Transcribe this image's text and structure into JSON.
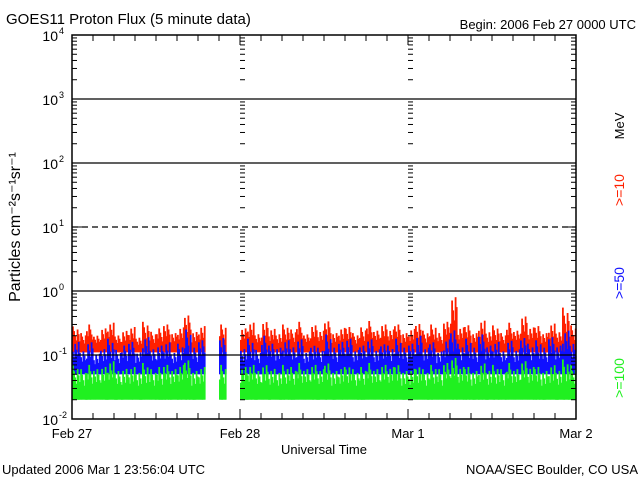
{
  "chart_data": {
    "type": "line",
    "title": "GOES11 Proton Flux (5 minute data)",
    "begin_label": "Begin: 2006 Feb 27 0000 UTC",
    "xlabel": "Universal Time",
    "ylabel": "Particles cm⁻²s⁻¹sr⁻¹",
    "y_scale": "log",
    "ylim": [
      0.01,
      10000
    ],
    "y_ticks": [
      {
        "base": "10",
        "exp": "-2"
      },
      {
        "base": "10",
        "exp": "-1"
      },
      {
        "base": "10",
        "exp": "0"
      },
      {
        "base": "10",
        "exp": "1"
      },
      {
        "base": "10",
        "exp": "2"
      },
      {
        "base": "10",
        "exp": "3"
      },
      {
        "base": "10",
        "exp": "4"
      }
    ],
    "x_unit": "hours since 2006 Feb 27 0000 UTC",
    "xlim": [
      0,
      72
    ],
    "x_ticks": [
      {
        "label": "Feb 27",
        "hour": 0
      },
      {
        "label": "Feb 28",
        "hour": 24
      },
      {
        "label": "Mar 1",
        "hour": 48
      },
      {
        "label": "Mar 2",
        "hour": 72
      }
    ],
    "grid": {
      "solid": [
        1000,
        100,
        1,
        0.1
      ],
      "dashed": [
        10
      ]
    },
    "unit_label": "MeV",
    "series": [
      {
        "name": ">=10",
        "color": "#ff2000",
        "typical_min": 0.11,
        "hourly_max": [
          0.28,
          0.22,
          0.3,
          0.2,
          0.26,
          0.32,
          0.21,
          0.25,
          0.29,
          0.2,
          0.33,
          0.23,
          0.26,
          0.3,
          0.22,
          0.27,
          0.45,
          0.24,
          0.3,
          null,
          null,
          0.3,
          null,
          null,
          0.26,
          0.32,
          0.22,
          0.35,
          0.27,
          0.23,
          0.3,
          0.25,
          0.33,
          0.21,
          0.29,
          0.24,
          0.36,
          0.23,
          0.28,
          0.31,
          0.22,
          0.27,
          0.34,
          0.24,
          0.3,
          0.25,
          0.32,
          0.23,
          0.27,
          0.35,
          0.24,
          0.3,
          0.22,
          0.33,
          0.8,
          0.27,
          0.31,
          0.23,
          0.37,
          0.25,
          0.29,
          0.22,
          0.32,
          0.24,
          0.4,
          0.27,
          0.3,
          0.23,
          0.33,
          0.25,
          0.55,
          0.29
        ]
      },
      {
        "name": ">=50",
        "color": "#1010ff",
        "typical_min": 0.05,
        "hourly_max": [
          0.16,
          0.12,
          0.17,
          0.11,
          0.14,
          0.18,
          0.12,
          0.14,
          0.16,
          0.11,
          0.19,
          0.13,
          0.15,
          0.17,
          0.12,
          0.15,
          0.25,
          0.13,
          0.17,
          null,
          null,
          0.2,
          null,
          null,
          0.14,
          0.18,
          0.12,
          0.2,
          0.15,
          0.13,
          0.17,
          0.14,
          0.19,
          0.12,
          0.16,
          0.13,
          0.21,
          0.13,
          0.16,
          0.18,
          0.12,
          0.15,
          0.19,
          0.13,
          0.17,
          0.14,
          0.18,
          0.13,
          0.15,
          0.2,
          0.13,
          0.17,
          0.12,
          0.19,
          0.3,
          0.15,
          0.18,
          0.13,
          0.21,
          0.14,
          0.16,
          0.12,
          0.18,
          0.13,
          0.22,
          0.15,
          0.17,
          0.13,
          0.19,
          0.14,
          0.24,
          0.16
        ]
      },
      {
        "name": ">=100",
        "color": "#20f020",
        "typical_min": 0.02,
        "hourly_max": [
          0.07,
          0.06,
          0.07,
          0.06,
          0.065,
          0.08,
          0.06,
          0.065,
          0.07,
          0.06,
          0.075,
          0.06,
          0.065,
          0.07,
          0.06,
          0.07,
          0.09,
          0.06,
          0.07,
          null,
          null,
          0.07,
          null,
          null,
          0.065,
          0.07,
          0.06,
          0.075,
          0.065,
          0.06,
          0.07,
          0.065,
          0.075,
          0.06,
          0.07,
          0.06,
          0.08,
          0.06,
          0.07,
          0.075,
          0.06,
          0.065,
          0.075,
          0.06,
          0.07,
          0.065,
          0.075,
          0.06,
          0.065,
          0.075,
          0.06,
          0.07,
          0.06,
          0.075,
          0.09,
          0.065,
          0.07,
          0.06,
          0.08,
          0.065,
          0.07,
          0.06,
          0.075,
          0.06,
          0.08,
          0.065,
          0.07,
          0.06,
          0.075,
          0.065,
          0.085,
          0.07
        ]
      }
    ]
  },
  "footer": {
    "updated": "Updated 2006 Mar  1 23:56:04 UTC",
    "credit": "NOAA/SEC Boulder, CO USA"
  }
}
